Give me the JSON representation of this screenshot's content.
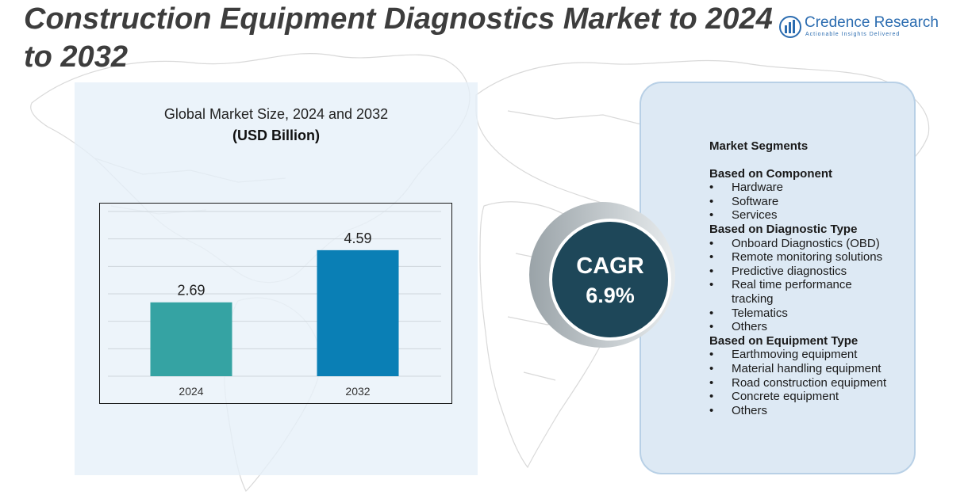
{
  "title": "Construction Equipment Diagnostics Market to 2024 to 2032",
  "logo": {
    "name": "Credence Research",
    "tagline": "Actionable Insights Delivered"
  },
  "chart_title": "Global Market Size,  2024 and 2032",
  "chart_subtitle": "(USD Billion)",
  "chart_data": {
    "type": "bar",
    "title": "Global Market Size,  2024 and 2032",
    "ylabel": "(USD Billion)",
    "xlabel": "",
    "categories": [
      "2024",
      "2032"
    ],
    "values": [
      2.69,
      4.59
    ],
    "data_labels": [
      "2.69",
      "4.59"
    ],
    "colors": [
      "#35a3a3",
      "#0a7fb5"
    ],
    "ylim": [
      0,
      6
    ],
    "grid": true
  },
  "cagr": {
    "label": "CAGR",
    "value": "6.9%"
  },
  "segments": {
    "heading": "Market Segments",
    "groups": [
      {
        "title": "Based on Component",
        "items": [
          "Hardware",
          "Software",
          "Services"
        ]
      },
      {
        "title": "Based on Diagnostic Type",
        "items": [
          "Onboard Diagnostics (OBD)",
          "Remote monitoring solutions",
          "Predictive diagnostics",
          "Real time performance tracking",
          "Telematics",
          "Others"
        ]
      },
      {
        "title": "Based on Equipment Type",
        "items": [
          "Earthmoving equipment",
          "Material handling equipment",
          "Road construction equipment",
          "Concrete equipment",
          "Others"
        ]
      }
    ],
    "bullet": "•"
  },
  "colors": {
    "title": "#3d3d3d",
    "cagr_circle": "#1e4759",
    "panel_right": "#dde9f4",
    "panel_left": "#e5f0f9",
    "logo": "#2b6cb0"
  }
}
